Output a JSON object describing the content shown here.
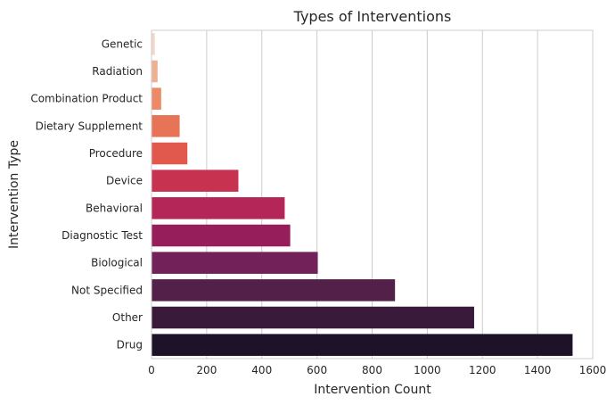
{
  "chart_data": {
    "type": "bar",
    "orientation": "horizontal",
    "title": "Types of Interventions",
    "xlabel": "Intervention Count",
    "ylabel": "Intervention Type",
    "categories": [
      "Genetic",
      "Radiation",
      "Combination Product",
      "Dietary Supplement",
      "Procedure",
      "Device",
      "Behavioral",
      "Diagnostic Test",
      "Biological",
      "Not Specified",
      "Other",
      "Drug"
    ],
    "values": [
      12,
      22,
      35,
      102,
      130,
      315,
      483,
      503,
      603,
      883,
      1170,
      1527
    ],
    "xlim": [
      0,
      1600
    ],
    "xticks": [
      0,
      200,
      400,
      600,
      800,
      1000,
      1200,
      1400,
      1600
    ],
    "grid": "vertical",
    "colors": [
      "#F3D8C8",
      "#EFB08F",
      "#EC8A67",
      "#E77457",
      "#E1584D",
      "#C73250",
      "#B42658",
      "#951E5B",
      "#722159",
      "#532049",
      "#3A1A3B",
      "#1E1229"
    ]
  }
}
